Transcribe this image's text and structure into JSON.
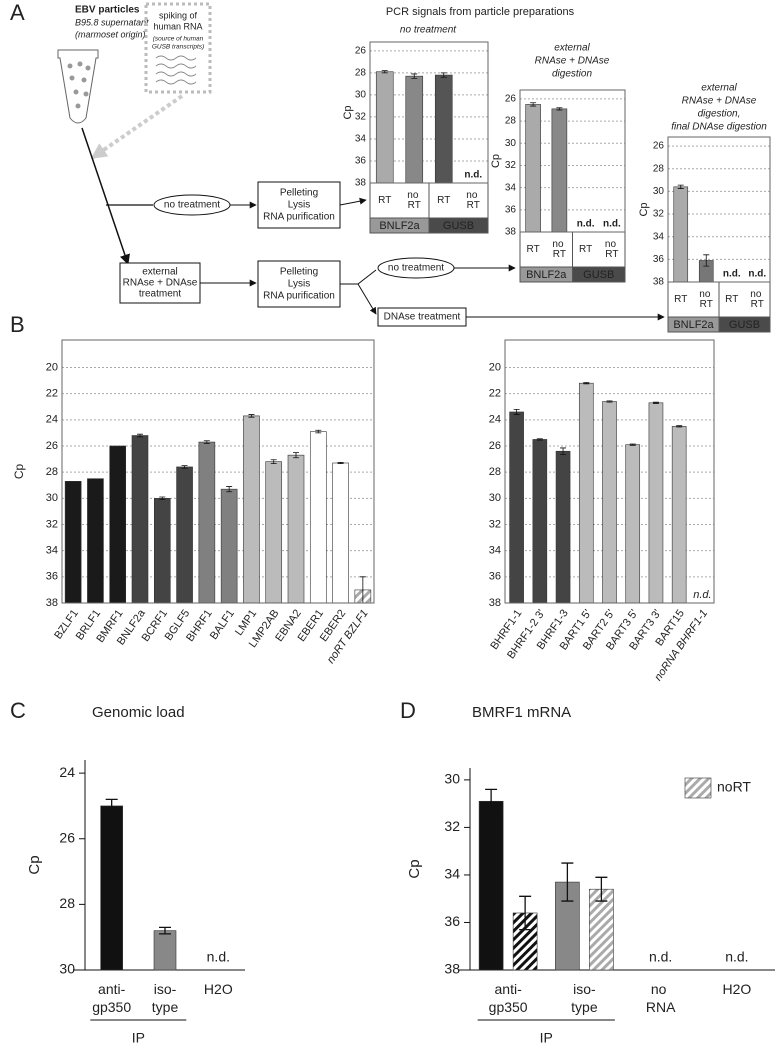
{
  "panel_labels": [
    "A",
    "B",
    "C",
    "D"
  ],
  "diagram": {
    "header": "PCR signals from particle preparations",
    "source_title": "EBV particles",
    "source_lines": [
      "B95.8 supernatant",
      "(marmoset origin)"
    ],
    "spike_lines": [
      "spiking of",
      "human RNA"
    ],
    "spike_note": [
      "(source of human",
      "GUSB transcripts)"
    ],
    "branch_1": "no treatment",
    "processing_1": [
      "Pelleting",
      "Lysis",
      "RNA purification"
    ],
    "treatment": [
      "external",
      "RNAse + DNAse",
      "treatment"
    ],
    "processing_2": [
      "Pelleting",
      "Lysis",
      "RNA purification"
    ],
    "branch_2": "no treatment",
    "branch_3": "DNAse treatment"
  },
  "chart_data": [
    {
      "type": "bar",
      "title": [
        "no treatment"
      ],
      "ylabel": "Cp",
      "categories": [
        "RT",
        "no RT",
        "RT",
        "no RT"
      ],
      "groups": [
        "BNLF2a",
        "GUSB"
      ],
      "group_colors": [
        "#999999",
        "#4a4a4a"
      ],
      "group_text_colors": [
        "#222222",
        "#ffffff"
      ],
      "values": [
        27.9,
        28.3,
        28.2,
        null
      ],
      "errors": [
        0.1,
        0.2,
        0.2,
        null
      ],
      "colors": [
        "#aaaaaa",
        "#888888",
        "#555555",
        "#555555"
      ],
      "missing_label": "n.d.",
      "ylim": [
        38,
        25.2
      ],
      "yticks": [
        26,
        28,
        30,
        32,
        34,
        36,
        38
      ],
      "grid": true,
      "frame": true
    },
    {
      "type": "bar",
      "title": [
        "external",
        "RNAse + DNAse",
        "digestion"
      ],
      "ylabel": "Cp",
      "categories": [
        "RT",
        "no RT",
        "RT",
        "no RT"
      ],
      "groups": [
        "BNLF2a",
        "GUSB"
      ],
      "group_colors": [
        "#999999",
        "#4a4a4a"
      ],
      "group_text_colors": [
        "#222222",
        "#ffffff"
      ],
      "values": [
        26.5,
        26.9,
        null,
        null
      ],
      "errors": [
        0.15,
        0.1,
        null,
        null
      ],
      "colors": [
        "#aaaaaa",
        "#888888",
        "#555555",
        "#555555"
      ],
      "missing_label": "n.d.",
      "ylim": [
        38,
        25.2
      ],
      "yticks": [
        26,
        28,
        30,
        32,
        34,
        36,
        38
      ],
      "grid": true,
      "frame": true
    },
    {
      "type": "bar",
      "title": [
        "external",
        "RNAse + DNAse",
        "digestion,",
        "final DNAse digestion"
      ],
      "ylabel": "Cp",
      "categories": [
        "RT",
        "no RT",
        "RT",
        "no RT"
      ],
      "groups": [
        "BNLF2a",
        "GUSB"
      ],
      "group_colors": [
        "#999999",
        "#4a4a4a"
      ],
      "group_text_colors": [
        "#222222",
        "#ffffff"
      ],
      "values": [
        29.6,
        36.1,
        null,
        null
      ],
      "errors": [
        0.15,
        0.5,
        null,
        null
      ],
      "colors": [
        "#aaaaaa",
        "#777777",
        "#555555",
        "#555555"
      ],
      "missing_label": "n.d.",
      "ylim": [
        38,
        25.2
      ],
      "yticks": [
        26,
        28,
        30,
        32,
        34,
        36,
        38
      ],
      "grid": true,
      "frame": true
    },
    {
      "type": "bar",
      "ylabel": "Cp",
      "categories": [
        "BZLF1",
        "BRLF1",
        "BMRF1",
        "BNLF2a",
        "BCRF1",
        "BGLF5",
        "BHRF1",
        "BALF1",
        "LMP1",
        "LMP2AB",
        "EBNA2",
        "EBER1",
        "EBER2",
        "noRT BZLF1"
      ],
      "values": [
        28.7,
        28.5,
        26.0,
        25.2,
        30.0,
        27.6,
        25.7,
        29.3,
        23.7,
        27.2,
        26.7,
        24.9,
        27.3,
        37.0
      ],
      "errors": [
        null,
        null,
        null,
        0.1,
        0.1,
        0.1,
        0.1,
        0.2,
        0.1,
        0.15,
        0.2,
        0.1,
        0.05,
        1.0
      ],
      "colors": [
        "#1a1a1a",
        "#1a1a1a",
        "#1a1a1a",
        "#444444",
        "#444444",
        "#444444",
        "#808080",
        "#808080",
        "#bbbbbb",
        "#bbbbbb",
        "#bbbbbb",
        "#ffffff",
        "#ffffff",
        "hatch:#aaaaaa"
      ],
      "ylim": [
        38,
        17.9
      ],
      "yticks": [
        20,
        22,
        24,
        26,
        28,
        30,
        32,
        34,
        36,
        38
      ],
      "grid": true,
      "frame": true
    },
    {
      "type": "bar",
      "categories": [
        "BHRF1-1",
        "BHRF1-2 3'",
        "BHRF1-3",
        "BART1 5'",
        "BART2 5'",
        "BART3 5'",
        "BART3 3'",
        "BART15",
        "noRNA BHRF1-1"
      ],
      "values": [
        23.4,
        25.5,
        26.4,
        21.2,
        22.6,
        25.9,
        22.7,
        24.5,
        null
      ],
      "errors": [
        0.2,
        0.05,
        0.25,
        0.05,
        0.05,
        0.05,
        0.05,
        0.05,
        null
      ],
      "colors": [
        "#444444",
        "#444444",
        "#444444",
        "#bbbbbb",
        "#bbbbbb",
        "#bbbbbb",
        "#bbbbbb",
        "#bbbbbb",
        null
      ],
      "missing_label": "n.d.",
      "ylim": [
        38,
        17.9
      ],
      "yticks": [
        20,
        22,
        24,
        26,
        28,
        30,
        32,
        34,
        36,
        38
      ],
      "grid": true,
      "frame": true
    },
    {
      "type": "bar",
      "title": "Genomic load",
      "ylabel": "Cp",
      "categories": [
        "anti-gp350",
        "iso-type",
        "H2O"
      ],
      "groups": [
        "IP"
      ],
      "values": [
        25.0,
        28.8,
        null
      ],
      "errors": [
        0.2,
        0.1,
        null
      ],
      "colors": [
        "#111111",
        "#888888",
        null
      ],
      "missing_label": "n.d.",
      "ylim": [
        30,
        23.6
      ],
      "yticks": [
        24,
        26,
        28,
        30
      ]
    },
    {
      "type": "bar",
      "title": "BMRF1 mRNA",
      "ylabel": "Cp",
      "categories": [
        "anti-gp350",
        "iso-type",
        "no RNA",
        "H2O"
      ],
      "groups": [
        "IP"
      ],
      "series": [
        {
          "values": [
            30.9,
            34.3,
            null,
            null
          ],
          "errors": [
            0.5,
            0.8,
            null,
            null
          ],
          "colors": [
            "#111111",
            "#888888",
            null,
            null
          ]
        },
        {
          "name": "noRT",
          "color": "hatch:#aaaaaa",
          "values": [
            35.6,
            34.6,
            null,
            null
          ],
          "errors": [
            0.7,
            0.5,
            null,
            null
          ],
          "colors": [
            "hatch:#111111",
            "hatch:#aaaaaa",
            null,
            null
          ]
        }
      ],
      "missing_label": "n.d.",
      "legend": "top-right",
      "ylim": [
        38,
        29.5
      ],
      "yticks": [
        30,
        32,
        34,
        36,
        38
      ]
    }
  ]
}
